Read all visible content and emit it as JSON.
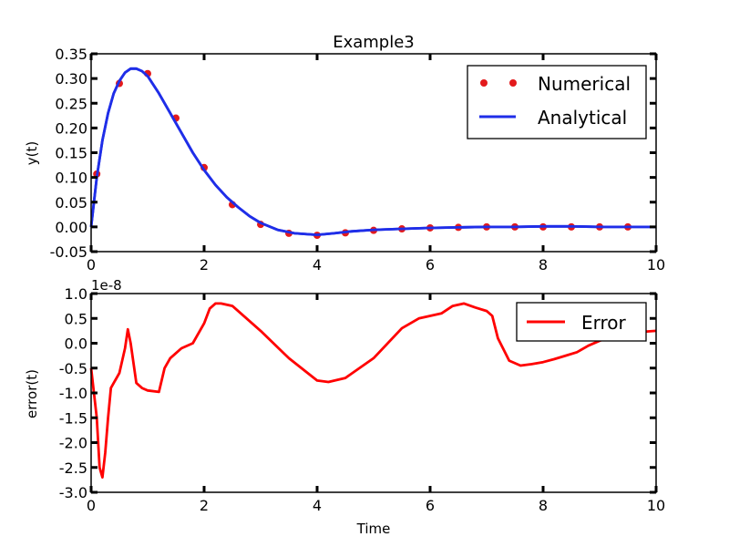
{
  "chart_data": [
    {
      "type": "scatter",
      "title": "Example3",
      "xlabel": "",
      "ylabel": "y(t)",
      "xlim": [
        0,
        10
      ],
      "ylim": [
        -0.05,
        0.35
      ],
      "xticks": [
        "0",
        "2",
        "4",
        "6",
        "8",
        "10"
      ],
      "yticks": [
        "-0.05",
        "0.00",
        "0.05",
        "0.10",
        "0.15",
        "0.20",
        "0.25",
        "0.30",
        "0.35"
      ],
      "legend_position": "top-right",
      "series": [
        {
          "name": "Numerical",
          "kind": "scatter",
          "color": "#e31a1c",
          "x": [
            0.1,
            0.5,
            1.0,
            1.5,
            2.0,
            2.5,
            3.0,
            3.5,
            4.0,
            4.5,
            5.0,
            5.5,
            6.0,
            6.5,
            7.0,
            7.5,
            8.0,
            8.5,
            9.0,
            9.5
          ],
          "y": [
            0.107,
            0.29,
            0.31,
            0.22,
            0.12,
            0.045,
            0.005,
            -0.013,
            -0.017,
            -0.012,
            -0.007,
            -0.004,
            -0.002,
            -0.001,
            0.0,
            0.0,
            0.0,
            0.0,
            0.0,
            0.0
          ]
        },
        {
          "name": "Analytical",
          "kind": "line",
          "color": "#1f2ee8",
          "x": [
            0,
            0.1,
            0.2,
            0.3,
            0.4,
            0.5,
            0.6,
            0.7,
            0.8,
            0.9,
            1.0,
            1.2,
            1.4,
            1.6,
            1.8,
            2.0,
            2.2,
            2.4,
            2.6,
            2.8,
            3.0,
            3.3,
            3.6,
            4.0,
            4.3,
            4.6,
            5.0,
            5.5,
            6.0,
            6.5,
            7.0,
            7.5,
            8.0,
            8.5,
            9.0,
            9.5,
            10.0
          ],
          "y": [
            0.0,
            0.1,
            0.175,
            0.23,
            0.27,
            0.295,
            0.312,
            0.32,
            0.32,
            0.315,
            0.305,
            0.27,
            0.23,
            0.19,
            0.15,
            0.115,
            0.085,
            0.06,
            0.04,
            0.022,
            0.008,
            -0.006,
            -0.013,
            -0.016,
            -0.013,
            -0.009,
            -0.006,
            -0.004,
            -0.002,
            -0.001,
            0.0,
            0.0,
            0.001,
            0.001,
            0.0,
            0.0,
            0.0
          ]
        }
      ]
    },
    {
      "type": "line",
      "title": "",
      "xlabel": "Time",
      "ylabel": "error(t)",
      "offset_label": "1e-8",
      "xlim": [
        0,
        10
      ],
      "ylim": [
        -3.0,
        1.0
      ],
      "xticks": [
        "0",
        "2",
        "4",
        "6",
        "8",
        "10"
      ],
      "yticks": [
        "-3.0",
        "-2.5",
        "-2.0",
        "-1.5",
        "-1.0",
        "-0.5",
        "0.0",
        "0.5",
        "1.0"
      ],
      "legend_position": "top-right",
      "series": [
        {
          "name": "Error",
          "kind": "line",
          "color": "#ff0000",
          "x": [
            0.0,
            0.05,
            0.1,
            0.15,
            0.2,
            0.25,
            0.3,
            0.35,
            0.4,
            0.5,
            0.6,
            0.65,
            0.7,
            0.8,
            0.9,
            1.0,
            1.2,
            1.3,
            1.4,
            1.5,
            1.6,
            1.8,
            2.0,
            2.1,
            2.2,
            2.3,
            2.5,
            3.0,
            3.5,
            4.0,
            4.2,
            4.5,
            5.0,
            5.5,
            5.8,
            6.0,
            6.2,
            6.4,
            6.6,
            6.8,
            7.0,
            7.1,
            7.2,
            7.4,
            7.6,
            7.8,
            8.0,
            8.2,
            8.4,
            8.6,
            8.8,
            9.0,
            9.4,
            10.0
          ],
          "y": [
            -0.5,
            -1.0,
            -1.5,
            -2.5,
            -2.7,
            -2.2,
            -1.5,
            -0.9,
            -0.8,
            -0.6,
            -0.1,
            0.28,
            0.0,
            -0.8,
            -0.9,
            -0.95,
            -0.98,
            -0.5,
            -0.3,
            -0.2,
            -0.1,
            0.0,
            0.4,
            0.7,
            0.8,
            0.8,
            0.75,
            0.25,
            -0.3,
            -0.75,
            -0.78,
            -0.7,
            -0.3,
            0.3,
            0.5,
            0.55,
            0.6,
            0.75,
            0.8,
            0.72,
            0.65,
            0.55,
            0.1,
            -0.35,
            -0.45,
            -0.42,
            -0.38,
            -0.32,
            -0.25,
            -0.18,
            -0.05,
            0.05,
            0.2,
            0.25
          ]
        }
      ]
    }
  ]
}
